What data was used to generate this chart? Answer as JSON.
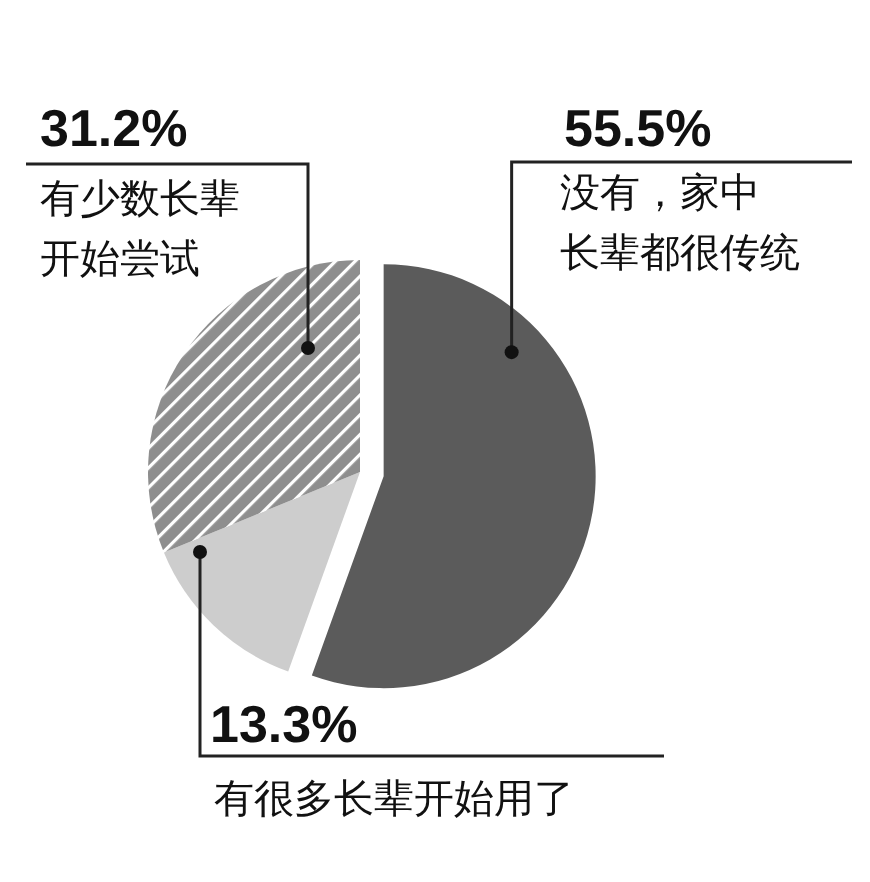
{
  "chart_data": {
    "type": "pie",
    "categories": [
      "没有，家中长辈都很传统",
      "有很多长辈开始用了",
      "有少数长辈开始尝试"
    ],
    "values": [
      55.5,
      13.3,
      31.2
    ],
    "colors": [
      "#5b5b5b",
      "#cdcdcd",
      "#8e8e8e"
    ],
    "value_labels": [
      "55.5%",
      "13.3%",
      "31.2%"
    ]
  }
}
